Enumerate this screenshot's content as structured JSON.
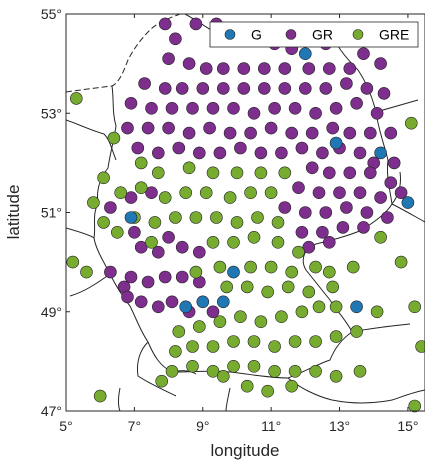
{
  "chart_data": {
    "type": "scatter",
    "title": "",
    "xlabel": "longitude",
    "ylabel": "latitude",
    "xlim": [
      5,
      15.5
    ],
    "ylim": [
      47,
      55
    ],
    "x_ticks": [
      5,
      7,
      9,
      11,
      13,
      15
    ],
    "x_tick_labels": [
      "5°",
      "7°",
      "9°",
      "11°",
      "13°",
      "15°"
    ],
    "y_ticks": [
      47,
      49,
      51,
      53,
      55
    ],
    "y_tick_labels": [
      "47°",
      "49°",
      "51°",
      "53°",
      "55°"
    ],
    "legend_position": "top-right",
    "grid": false,
    "series": [
      {
        "name": "G",
        "color": "#1f77b4",
        "points": [
          [
            6.9,
            50.9
          ],
          [
            8.5,
            49.1
          ],
          [
            9.0,
            49.2
          ],
          [
            9.6,
            49.2
          ],
          [
            9.9,
            49.8
          ],
          [
            12.0,
            54.2
          ],
          [
            12.9,
            52.4
          ],
          [
            13.5,
            49.1
          ],
          [
            14.2,
            52.2
          ],
          [
            15.0,
            51.2
          ]
        ]
      },
      {
        "name": "GR",
        "color": "#7e2f8e",
        "points": [
          [
            7.9,
            54.8
          ],
          [
            8.2,
            54.5
          ],
          [
            8.8,
            54.8
          ],
          [
            9.4,
            54.8
          ],
          [
            10.0,
            54.6
          ],
          [
            10.7,
            54.5
          ],
          [
            11.1,
            54.4
          ],
          [
            11.6,
            54.3
          ],
          [
            12.6,
            54.4
          ],
          [
            13.1,
            54.5
          ],
          [
            13.5,
            54.6
          ],
          [
            13.7,
            54.2
          ],
          [
            14.2,
            54.0
          ],
          [
            8.0,
            54.1
          ],
          [
            8.6,
            54.0
          ],
          [
            9.1,
            53.9
          ],
          [
            9.6,
            53.9
          ],
          [
            10.2,
            53.9
          ],
          [
            10.8,
            53.9
          ],
          [
            11.4,
            53.9
          ],
          [
            12.1,
            53.9
          ],
          [
            12.7,
            53.9
          ],
          [
            13.3,
            53.9
          ],
          [
            7.3,
            53.6
          ],
          [
            7.9,
            53.5
          ],
          [
            8.4,
            53.5
          ],
          [
            9.0,
            53.5
          ],
          [
            9.6,
            53.5
          ],
          [
            10.2,
            53.5
          ],
          [
            10.8,
            53.5
          ],
          [
            11.4,
            53.5
          ],
          [
            12.0,
            53.5
          ],
          [
            12.6,
            53.5
          ],
          [
            13.2,
            53.6
          ],
          [
            13.8,
            53.5
          ],
          [
            14.3,
            53.4
          ],
          [
            6.9,
            53.2
          ],
          [
            7.5,
            53.1
          ],
          [
            8.1,
            53.1
          ],
          [
            8.7,
            53.1
          ],
          [
            9.3,
            53.1
          ],
          [
            9.9,
            53.1
          ],
          [
            10.5,
            53.0
          ],
          [
            11.1,
            53.1
          ],
          [
            11.7,
            53.1
          ],
          [
            12.3,
            53.0
          ],
          [
            12.9,
            53.1
          ],
          [
            13.5,
            53.2
          ],
          [
            14.1,
            53.0
          ],
          [
            6.8,
            52.7
          ],
          [
            7.4,
            52.7
          ],
          [
            8.0,
            52.7
          ],
          [
            8.6,
            52.6
          ],
          [
            9.2,
            52.7
          ],
          [
            9.8,
            52.6
          ],
          [
            10.4,
            52.6
          ],
          [
            11.0,
            52.7
          ],
          [
            11.6,
            52.6
          ],
          [
            12.2,
            52.6
          ],
          [
            12.8,
            52.7
          ],
          [
            13.3,
            52.6
          ],
          [
            13.9,
            52.6
          ],
          [
            14.5,
            52.6
          ],
          [
            7.1,
            52.3
          ],
          [
            7.7,
            52.2
          ],
          [
            8.3,
            52.3
          ],
          [
            8.9,
            52.2
          ],
          [
            9.5,
            52.2
          ],
          [
            10.1,
            52.3
          ],
          [
            10.7,
            52.2
          ],
          [
            11.3,
            52.2
          ],
          [
            11.9,
            52.3
          ],
          [
            12.5,
            52.2
          ],
          [
            13.0,
            52.3
          ],
          [
            13.6,
            52.2
          ],
          [
            14.0,
            52.0
          ],
          [
            14.6,
            52.0
          ],
          [
            12.2,
            51.9
          ],
          [
            12.7,
            51.8
          ],
          [
            13.3,
            51.8
          ],
          [
            13.9,
            51.8
          ],
          [
            14.5,
            51.6
          ],
          [
            11.8,
            51.5
          ],
          [
            12.4,
            51.4
          ],
          [
            13.0,
            51.4
          ],
          [
            13.6,
            51.4
          ],
          [
            14.2,
            51.3
          ],
          [
            14.8,
            51.4
          ],
          [
            11.4,
            51.1
          ],
          [
            12.0,
            51.0
          ],
          [
            12.6,
            51.0
          ],
          [
            13.2,
            51.1
          ],
          [
            13.8,
            51.0
          ],
          [
            14.4,
            50.9
          ],
          [
            11.9,
            50.6
          ],
          [
            12.5,
            50.6
          ],
          [
            13.1,
            50.7
          ],
          [
            13.7,
            50.7
          ],
          [
            12.1,
            50.3
          ],
          [
            12.7,
            50.4
          ],
          [
            6.3,
            51.1
          ],
          [
            6.9,
            51.3
          ],
          [
            7.5,
            51.4
          ],
          [
            7.0,
            50.6
          ],
          [
            7.2,
            50.3
          ],
          [
            7.7,
            50.2
          ],
          [
            8.0,
            50.5
          ],
          [
            8.4,
            50.3
          ],
          [
            8.9,
            50.2
          ],
          [
            6.3,
            49.8
          ],
          [
            6.9,
            49.7
          ],
          [
            7.4,
            49.6
          ],
          [
            7.9,
            49.7
          ],
          [
            8.4,
            49.7
          ],
          [
            8.9,
            49.6
          ],
          [
            6.7,
            49.5
          ],
          [
            6.8,
            49.3
          ],
          [
            7.2,
            49.2
          ],
          [
            7.7,
            49.1
          ],
          [
            8.1,
            49.2
          ],
          [
            8.6,
            49.0
          ],
          [
            9.3,
            49.0
          ]
        ]
      },
      {
        "name": "GRE",
        "color": "#77ac30",
        "points": [
          [
            5.3,
            53.3
          ],
          [
            6.4,
            52.5
          ],
          [
            7.2,
            52.0
          ],
          [
            7.7,
            51.8
          ],
          [
            8.6,
            51.9
          ],
          [
            9.3,
            51.8
          ],
          [
            10.0,
            51.8
          ],
          [
            10.7,
            51.8
          ],
          [
            11.4,
            51.8
          ],
          [
            6.1,
            51.7
          ],
          [
            6.6,
            51.4
          ],
          [
            7.2,
            51.5
          ],
          [
            7.9,
            51.3
          ],
          [
            8.5,
            51.4
          ],
          [
            9.1,
            51.4
          ],
          [
            9.8,
            51.3
          ],
          [
            10.4,
            51.4
          ],
          [
            11.0,
            51.4
          ],
          [
            6.1,
            50.8
          ],
          [
            6.5,
            50.6
          ],
          [
            7.0,
            50.9
          ],
          [
            7.6,
            50.8
          ],
          [
            8.2,
            50.9
          ],
          [
            8.8,
            50.9
          ],
          [
            9.4,
            50.9
          ],
          [
            10.0,
            50.8
          ],
          [
            10.6,
            50.9
          ],
          [
            11.2,
            50.8
          ],
          [
            7.5,
            50.4
          ],
          [
            9.3,
            50.4
          ],
          [
            9.9,
            50.4
          ],
          [
            10.5,
            50.5
          ],
          [
            11.2,
            50.4
          ],
          [
            11.8,
            50.2
          ],
          [
            12.3,
            49.9
          ],
          [
            5.2,
            50.0
          ],
          [
            8.8,
            49.8
          ],
          [
            9.5,
            49.9
          ],
          [
            10.4,
            49.9
          ],
          [
            11.0,
            49.9
          ],
          [
            11.6,
            49.8
          ],
          [
            12.7,
            49.8
          ],
          [
            13.4,
            49.9
          ],
          [
            9.7,
            49.5
          ],
          [
            10.3,
            49.5
          ],
          [
            10.9,
            49.4
          ],
          [
            11.5,
            49.5
          ],
          [
            12.1,
            49.4
          ],
          [
            12.8,
            49.5
          ],
          [
            8.3,
            48.6
          ],
          [
            8.9,
            48.7
          ],
          [
            9.5,
            48.8
          ],
          [
            10.1,
            48.9
          ],
          [
            10.7,
            48.8
          ],
          [
            11.3,
            48.9
          ],
          [
            11.9,
            49.0
          ],
          [
            12.4,
            49.1
          ],
          [
            12.9,
            49.1
          ],
          [
            14.1,
            49.0
          ],
          [
            8.2,
            48.2
          ],
          [
            8.7,
            48.3
          ],
          [
            9.3,
            48.3
          ],
          [
            9.9,
            48.4
          ],
          [
            10.5,
            48.4
          ],
          [
            11.1,
            48.3
          ],
          [
            11.7,
            48.4
          ],
          [
            12.3,
            48.4
          ],
          [
            12.9,
            48.5
          ],
          [
            13.5,
            48.6
          ],
          [
            8.1,
            47.8
          ],
          [
            8.7,
            47.9
          ],
          [
            9.3,
            47.8
          ],
          [
            9.9,
            47.9
          ],
          [
            10.5,
            47.9
          ],
          [
            11.1,
            47.8
          ],
          [
            11.7,
            47.8
          ],
          [
            12.3,
            47.8
          ],
          [
            12.9,
            47.7
          ],
          [
            13.6,
            47.8
          ],
          [
            7.8,
            47.6
          ],
          [
            9.6,
            47.7
          ],
          [
            10.3,
            47.5
          ],
          [
            10.9,
            47.4
          ],
          [
            11.6,
            47.5
          ],
          [
            6.0,
            47.3
          ],
          [
            15.2,
            47.1
          ],
          [
            15.9,
            47.9
          ],
          [
            15.4,
            48.3
          ],
          [
            15.2,
            49.1
          ],
          [
            15.7,
            49.5
          ],
          [
            14.8,
            50.0
          ],
          [
            14.2,
            50.5
          ],
          [
            15.1,
            52.8
          ],
          [
            5.8,
            51.2
          ],
          [
            5.6,
            49.8
          ]
        ]
      }
    ]
  }
}
